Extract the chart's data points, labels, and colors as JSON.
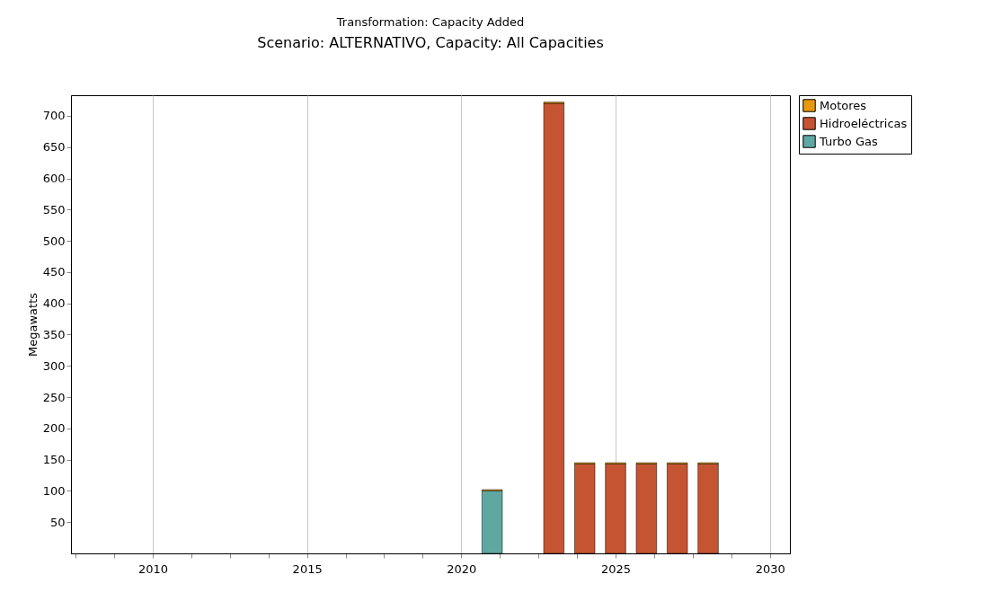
{
  "chart_data": {
    "type": "bar",
    "title": "Transformation: Capacity Added",
    "subtitle": "Scenario: ALTERNATIVO, Capacity: All Capacities",
    "ylabel": "Megawatts",
    "stacked": true,
    "x": [
      2021,
      2023,
      2024,
      2025,
      2026,
      2027,
      2028
    ],
    "series": [
      {
        "name": "Turbo Gas",
        "color": "#5fa8a2",
        "values": [
          100,
          null,
          null,
          null,
          null,
          null,
          null
        ]
      },
      {
        "name": "Hidroeléctricas",
        "color": "#c55432",
        "values": [
          null,
          720,
          143,
          143,
          143,
          143,
          143
        ]
      },
      {
        "name": "Motores",
        "color": "#e8990c",
        "values": [
          2,
          2,
          2,
          2,
          2,
          2,
          2
        ]
      }
    ],
    "xlim": [
      2007.35,
      2030.65
    ],
    "xticks": [
      {
        "value": 2007.5,
        "label": null
      },
      {
        "value": 2008.75,
        "label": null
      },
      2010,
      {
        "value": 2011.25,
        "label": null
      },
      {
        "value": 2012.5,
        "label": null
      },
      {
        "value": 2013.75,
        "label": null
      },
      2015,
      {
        "value": 2016.25,
        "label": null
      },
      {
        "value": 2017.5,
        "label": null
      },
      {
        "value": 2018.75,
        "label": null
      },
      2020,
      {
        "value": 2021.25,
        "label": null
      },
      {
        "value": 2022.5,
        "label": null
      },
      {
        "value": 2023.75,
        "label": null
      },
      2025,
      {
        "value": 2026.25,
        "label": null
      },
      {
        "value": 2027.5,
        "label": null
      },
      {
        "value": 2028.75,
        "label": null
      },
      2030
    ],
    "ylim": [
      0,
      733
    ],
    "yticks": [
      50,
      100,
      150,
      200,
      250,
      300,
      350,
      400,
      450,
      500,
      550,
      600,
      650,
      700
    ],
    "grid": "x",
    "legend": "top right"
  }
}
